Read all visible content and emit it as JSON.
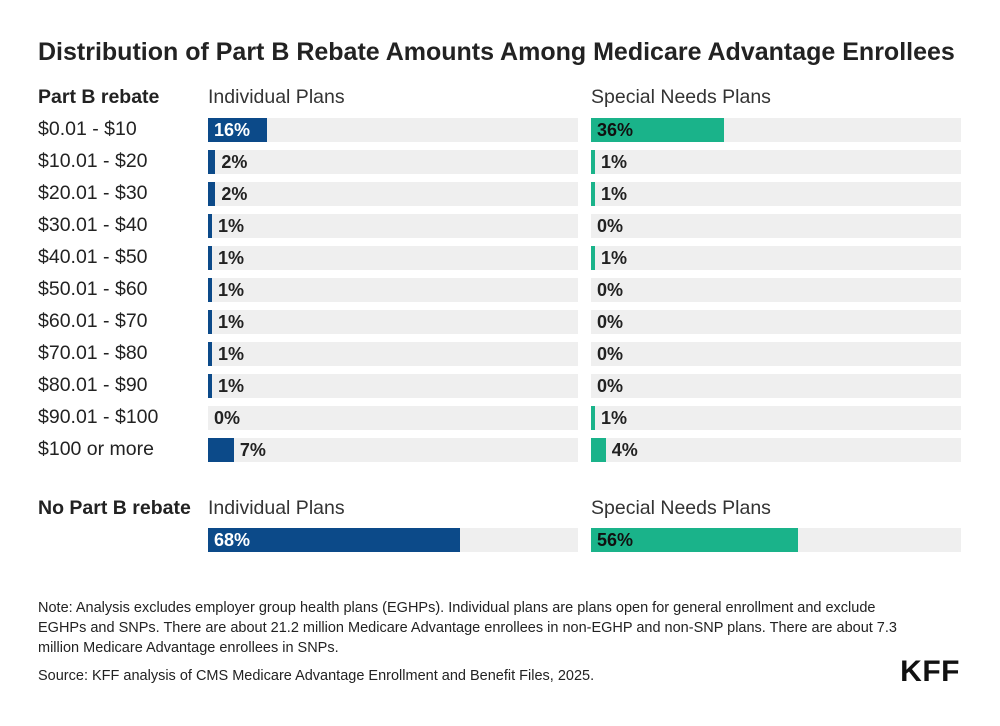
{
  "chart_data": {
    "type": "bar",
    "title": "Distribution of Part B Rebate Amounts Among Medicare Advantage Enrollees",
    "row_header": "Part B rebate",
    "series_names": [
      "Individual Plans",
      "Special Needs Plans"
    ],
    "categories": [
      "$0.01 - $10",
      "$10.01 - $20",
      "$20.01 - $30",
      "$30.01 - $40",
      "$40.01 - $50",
      "$50.01 - $60",
      "$60.01 - $70",
      "$70.01 - $80",
      "$80.01 - $90",
      "$90.01 - $100",
      "$100 or more"
    ],
    "series": [
      {
        "name": "Individual Plans",
        "values": [
          16,
          2,
          2,
          1,
          1,
          1,
          1,
          1,
          1,
          0,
          7
        ],
        "labels": [
          "16%",
          "2%",
          "2%",
          "1%",
          "1%",
          "1%",
          "1%",
          "1%",
          "1%",
          "0%",
          "7%"
        ]
      },
      {
        "name": "Special Needs Plans",
        "values": [
          36,
          1,
          1,
          0,
          1,
          0,
          0,
          0,
          0,
          1,
          4
        ],
        "labels": [
          "36%",
          "1%",
          "1%",
          "0%",
          "1%",
          "0%",
          "0%",
          "0%",
          "0%",
          "1%",
          "4%"
        ]
      }
    ],
    "no_rebate": {
      "label": "No Part B rebate",
      "individual": {
        "header": "Individual Plans",
        "value": 68,
        "label": "68%"
      },
      "snp": {
        "header": "Special Needs Plans",
        "value": 56,
        "label": "56%"
      }
    },
    "xlim": [
      0,
      100
    ]
  },
  "footer": {
    "note": "Note: Analysis excludes employer group health plans (EGHPs). Individual plans are plans open for general enrollment and exclude EGHPs and SNPs. There are about 21.2 million Medicare Advantage enrollees in non-EGHP and non-SNP plans. There are about 7.3 million Medicare Advantage enrollees in SNPs.",
    "source": "Source: KFF analysis of CMS Medicare Advantage Enrollment and Benefit Files, 2025.",
    "logo": "KFF"
  },
  "colors": {
    "individual": "#0c4a89",
    "snp": "#1ab38a",
    "track": "#efefef"
  }
}
